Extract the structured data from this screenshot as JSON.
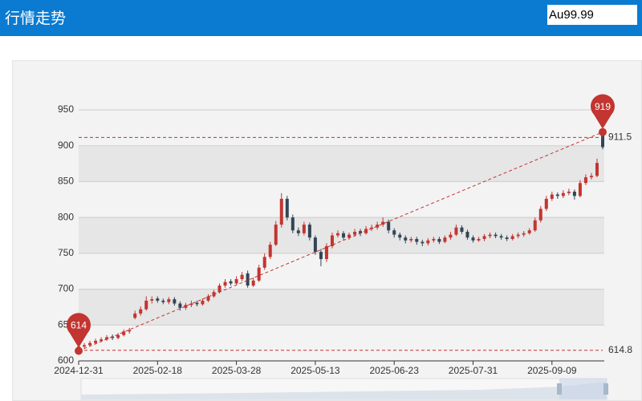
{
  "header": {
    "title": "行情走势",
    "search": "Au99.99"
  },
  "chart_data": {
    "type": "candlestick",
    "categories": [
      "2024-12-31",
      null,
      null,
      null,
      null,
      null,
      null,
      null,
      null,
      null,
      null,
      null,
      null,
      null,
      "2025-02-18",
      null,
      null,
      null,
      null,
      null,
      null,
      null,
      null,
      null,
      null,
      null,
      null,
      null,
      "2025-03-28",
      null,
      null,
      null,
      null,
      null,
      null,
      null,
      null,
      null,
      null,
      null,
      null,
      null,
      "2025-05-13",
      null,
      null,
      null,
      null,
      null,
      null,
      null,
      null,
      null,
      null,
      null,
      null,
      null,
      "2025-06-23",
      null,
      null,
      null,
      null,
      null,
      null,
      null,
      null,
      null,
      null,
      null,
      null,
      null,
      "2025-07-31",
      null,
      null,
      null,
      null,
      null,
      null,
      null,
      null,
      null,
      null,
      null,
      null,
      null,
      "2025-09-09",
      null,
      null,
      null,
      null,
      null,
      null,
      null,
      null,
      null
    ],
    "open": [
      616,
      620,
      622,
      625,
      628,
      630,
      634,
      632,
      636,
      641,
      660,
      666,
      672,
      684,
      687,
      684,
      682,
      686,
      680,
      674,
      678,
      681,
      679,
      684,
      690,
      696,
      705,
      711,
      708,
      714,
      722,
      705,
      712,
      730,
      745,
      762,
      790,
      826,
      800,
      782,
      778,
      790,
      772,
      752,
      742,
      760,
      775,
      778,
      772,
      776,
      781,
      778,
      784,
      786,
      790,
      794,
      782,
      776,
      772,
      768,
      770,
      766,
      764,
      768,
      770,
      766,
      772,
      776,
      786,
      780,
      772,
      768,
      770,
      774,
      776,
      774,
      772,
      770,
      774,
      776,
      778,
      782,
      796,
      812,
      826,
      832,
      830,
      834,
      836,
      830,
      848,
      856,
      858,
      914
    ],
    "close": [
      620,
      622,
      625,
      628,
      630,
      633,
      632,
      636,
      641,
      643,
      666,
      672,
      684,
      686,
      684,
      682,
      686,
      680,
      674,
      678,
      680,
      679,
      684,
      690,
      696,
      705,
      710,
      708,
      714,
      720,
      705,
      712,
      730,
      745,
      762,
      790,
      826,
      800,
      782,
      778,
      790,
      772,
      752,
      742,
      760,
      775,
      778,
      772,
      776,
      780,
      778,
      784,
      786,
      790,
      794,
      782,
      776,
      772,
      768,
      770,
      766,
      764,
      768,
      770,
      766,
      772,
      776,
      786,
      780,
      772,
      768,
      770,
      774,
      776,
      774,
      772,
      770,
      774,
      776,
      778,
      782,
      796,
      812,
      826,
      832,
      830,
      834,
      836,
      830,
      848,
      856,
      858,
      876,
      898
    ],
    "low": [
      614,
      618,
      620,
      623,
      626,
      628,
      629,
      630,
      634,
      638,
      658,
      663,
      670,
      680,
      681,
      679,
      679,
      677,
      670,
      671,
      675,
      676,
      677,
      682,
      688,
      694,
      702,
      705,
      706,
      711,
      702,
      703,
      710,
      727,
      742,
      760,
      786,
      796,
      778,
      774,
      775,
      768,
      748,
      732,
      738,
      757,
      772,
      769,
      769,
      773,
      774,
      776,
      781,
      783,
      787,
      778,
      772,
      768,
      764,
      765,
      762,
      760,
      761,
      765,
      763,
      764,
      769,
      774,
      777,
      769,
      765,
      766,
      767,
      771,
      771,
      769,
      767,
      768,
      771,
      773,
      776,
      780,
      793,
      809,
      823,
      826,
      827,
      831,
      825,
      828,
      845,
      853,
      856,
      895
    ],
    "high": [
      623,
      625,
      628,
      631,
      633,
      636,
      637,
      639,
      644,
      646,
      670,
      676,
      690,
      690,
      690,
      687,
      689,
      689,
      683,
      681,
      684,
      684,
      687,
      693,
      699,
      708,
      714,
      714,
      718,
      724,
      726,
      716,
      734,
      750,
      766,
      795,
      834,
      830,
      804,
      786,
      794,
      793,
      775,
      756,
      764,
      779,
      782,
      781,
      779,
      784,
      784,
      788,
      790,
      794,
      800,
      797,
      785,
      779,
      775,
      773,
      773,
      769,
      771,
      773,
      773,
      775,
      780,
      790,
      789,
      783,
      775,
      773,
      777,
      779,
      779,
      777,
      775,
      777,
      779,
      781,
      785,
      800,
      816,
      830,
      836,
      835,
      838,
      840,
      839,
      852,
      860,
      862,
      882,
      919
    ],
    "up_color": "#c23531",
    "down_color": "#314656",
    "ylim": [
      600,
      950
    ],
    "yticks": [
      600,
      650,
      700,
      750,
      800,
      850,
      900,
      950
    ],
    "split_area": true,
    "max_point": 919,
    "min_point": 614,
    "mark_lines": [
      911.5,
      614.8
    ],
    "mark_color": "#c23531"
  }
}
